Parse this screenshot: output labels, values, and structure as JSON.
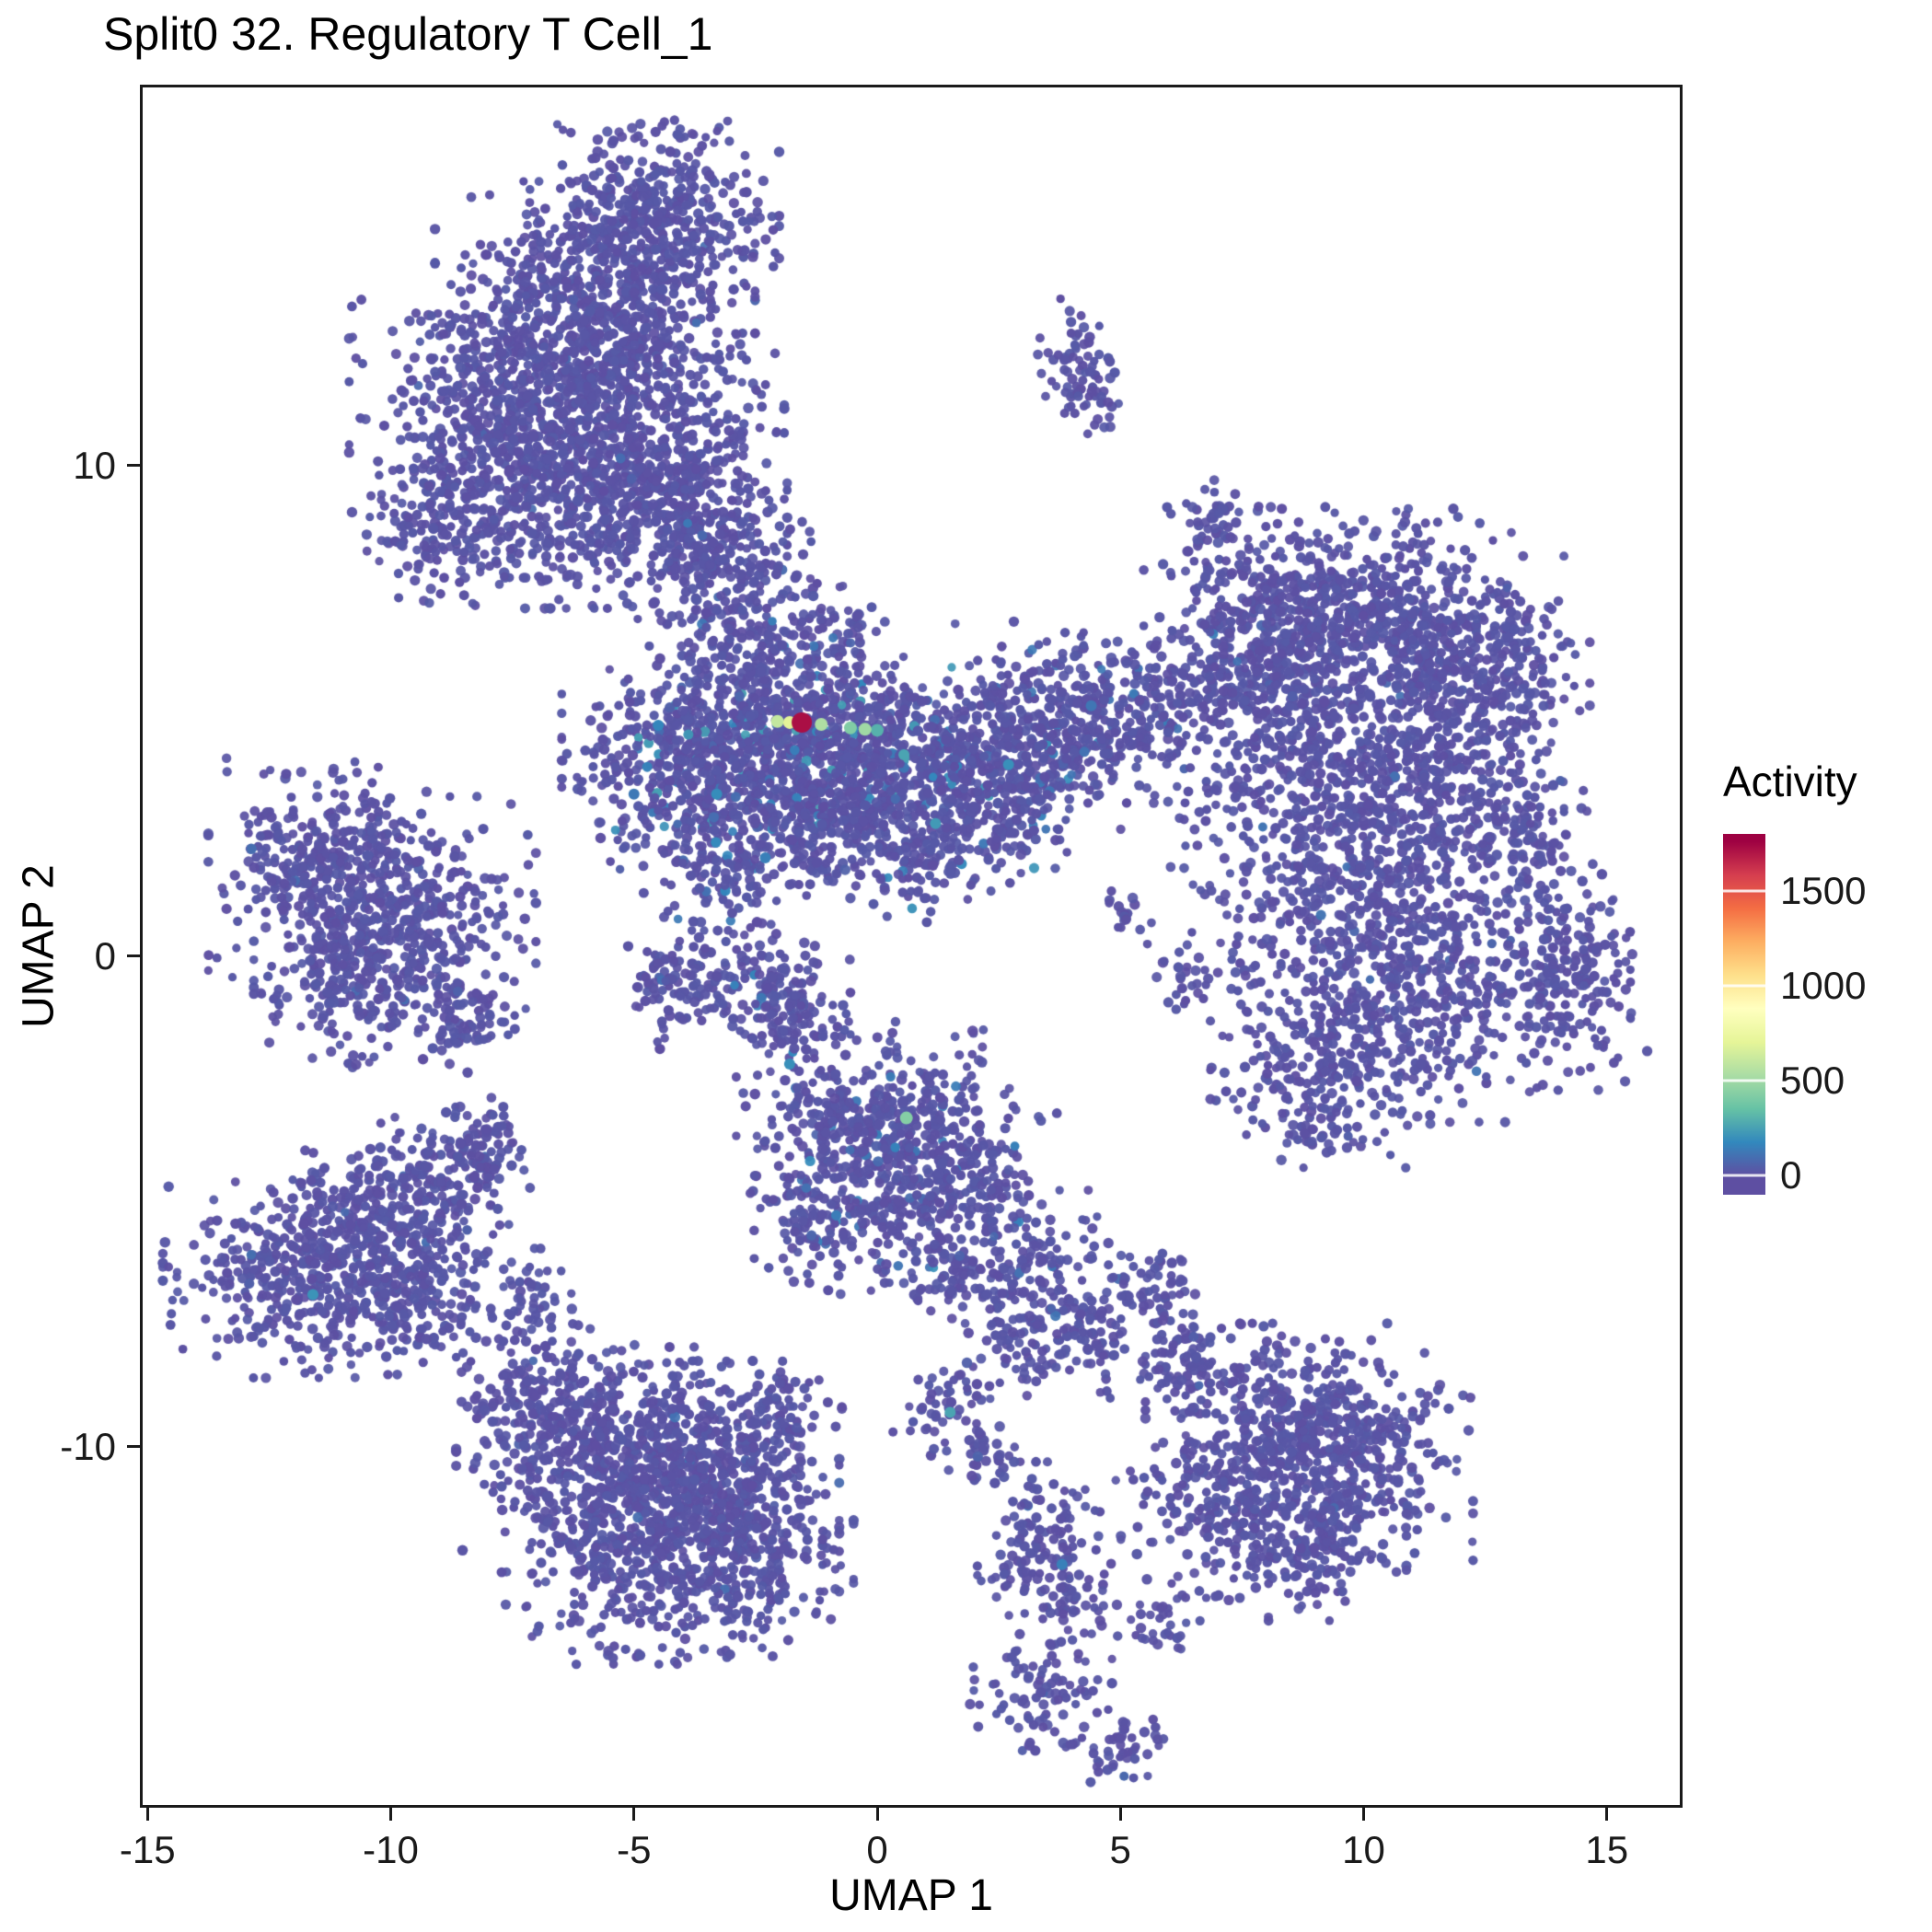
{
  "chart_data": {
    "type": "scatter",
    "title": "Split0 32. Regulatory T Cell_1",
    "xlabel": "UMAP 1",
    "ylabel": "UMAP 2",
    "xlim": [
      -15.1,
      16.5
    ],
    "ylim": [
      -17.3,
      17.7
    ],
    "x_ticks": [
      -15,
      -10,
      -5,
      0,
      5,
      10,
      15
    ],
    "y_ticks": [
      -10,
      0,
      10
    ],
    "grid": false,
    "point_radius": 5.0,
    "seed": 42,
    "panel_border_color": "#1a1a1a",
    "background": "#ffffff",
    "legend": {
      "title": "Activity",
      "position": "right",
      "ticks": [
        0,
        500,
        1000,
        1500
      ],
      "color_max": 1760,
      "bar_range": [
        -100,
        1800
      ],
      "colors": [
        "#5E4FA2",
        "#3288BD",
        "#66C2A5",
        "#ABDDA4",
        "#E6F598",
        "#FFFFBF",
        "#FEE08B",
        "#FDAE61",
        "#F46D43",
        "#D53E4F",
        "#9E0142"
      ]
    },
    "clusters_format": [
      "x",
      "y",
      "sx",
      "sy",
      "n",
      "p_mid_value",
      "mid_value_max"
    ],
    "clusters": [
      [
        -4.6,
        15.0,
        1.1,
        0.9,
        400,
        0.01,
        100
      ],
      [
        -5.8,
        13.2,
        1.4,
        1.1,
        550,
        0.01,
        100
      ],
      [
        -7.8,
        11.0,
        1.3,
        1.4,
        550,
        0.01,
        100
      ],
      [
        -5.2,
        11.0,
        1.4,
        1.1,
        450,
        0.01,
        100
      ],
      [
        -6.5,
        9.2,
        1.2,
        0.9,
        300,
        0.01,
        100
      ],
      [
        -4.2,
        9.3,
        1.0,
        0.9,
        300,
        0.02,
        140
      ],
      [
        -3.2,
        7.8,
        0.8,
        0.8,
        200,
        0.02,
        140
      ],
      [
        -9.2,
        8.7,
        0.6,
        0.8,
        120,
        0.01,
        100
      ],
      [
        -2.6,
        6.4,
        0.6,
        0.6,
        100,
        0.03,
        160
      ],
      [
        -0.9,
        6.6,
        0.45,
        0.5,
        70,
        0.03,
        160
      ],
      [
        4.0,
        12.1,
        0.4,
        0.55,
        50,
        0.01,
        100
      ],
      [
        4.5,
        11.3,
        0.3,
        0.35,
        30,
        0.01,
        100
      ],
      [
        -3.9,
        4.2,
        1.1,
        0.9,
        420,
        0.09,
        260
      ],
      [
        -2.0,
        4.5,
        0.9,
        0.8,
        380,
        0.09,
        260
      ],
      [
        -0.3,
        4.1,
        1.0,
        0.85,
        380,
        0.09,
        260
      ],
      [
        1.6,
        3.9,
        1.0,
        0.85,
        330,
        0.08,
        240
      ],
      [
        3.4,
        4.7,
        0.9,
        0.9,
        280,
        0.06,
        220
      ],
      [
        5.2,
        5.0,
        0.8,
        0.8,
        200,
        0.04,
        180
      ],
      [
        -2.9,
        2.4,
        1.1,
        0.8,
        280,
        0.07,
        240
      ],
      [
        -0.9,
        2.6,
        0.7,
        0.6,
        150,
        0.07,
        240
      ],
      [
        0.8,
        2.1,
        0.7,
        0.6,
        130,
        0.06,
        220
      ],
      [
        2.6,
        2.9,
        0.6,
        0.6,
        110,
        0.06,
        220
      ],
      [
        8.3,
        6.8,
        1.2,
        1.0,
        400,
        0.015,
        120
      ],
      [
        10.4,
        7.0,
        1.2,
        0.9,
        380,
        0.015,
        120
      ],
      [
        12.3,
        5.8,
        1.0,
        1.0,
        300,
        0.015,
        120
      ],
      [
        8.8,
        4.4,
        1.2,
        1.1,
        380,
        0.02,
        140
      ],
      [
        11.3,
        3.4,
        1.2,
        1.2,
        360,
        0.015,
        120
      ],
      [
        9.6,
        1.4,
        1.4,
        1.3,
        420,
        0.02,
        140
      ],
      [
        11.2,
        -0.8,
        1.1,
        1.1,
        320,
        0.015,
        120
      ],
      [
        9.2,
        -2.2,
        1.0,
        0.9,
        260,
        0.015,
        120
      ],
      [
        13.3,
        2.2,
        0.6,
        0.8,
        120,
        0.01,
        100
      ],
      [
        14.3,
        -0.5,
        0.75,
        0.95,
        200,
        0.01,
        100
      ],
      [
        6.8,
        5.6,
        0.6,
        0.6,
        90,
        0.03,
        160
      ],
      [
        6.9,
        8.9,
        0.4,
        0.45,
        50,
        0.01,
        100
      ],
      [
        -11.4,
        1.8,
        1.0,
        0.95,
        320,
        0.01,
        100
      ],
      [
        -9.6,
        0.9,
        1.1,
        1.0,
        330,
        0.01,
        100
      ],
      [
        -10.7,
        -0.4,
        0.9,
        0.8,
        220,
        0.015,
        120
      ],
      [
        -8.4,
        -1.2,
        0.5,
        0.5,
        80,
        0.01,
        100
      ],
      [
        -2.9,
        -0.6,
        1.0,
        0.55,
        170,
        0.04,
        180
      ],
      [
        -1.8,
        -1.3,
        0.5,
        0.45,
        80,
        0.04,
        180
      ],
      [
        -4.3,
        -0.4,
        0.35,
        0.3,
        40,
        0.02,
        120
      ],
      [
        -0.9,
        -3.4,
        0.85,
        0.75,
        180,
        0.05,
        200
      ],
      [
        0.8,
        -3.1,
        0.85,
        0.75,
        180,
        0.05,
        200
      ],
      [
        0.1,
        -4.9,
        1.0,
        0.85,
        220,
        0.05,
        200
      ],
      [
        1.9,
        -4.4,
        0.8,
        0.7,
        140,
        0.04,
        180
      ],
      [
        -1.4,
        -5.6,
        0.55,
        0.5,
        70,
        0.04,
        180
      ],
      [
        1.4,
        -6.3,
        0.65,
        0.6,
        90,
        0.04,
        180
      ],
      [
        3.3,
        -6.3,
        0.75,
        0.65,
        130,
        0.02,
        140
      ],
      [
        4.3,
        -7.6,
        0.65,
        0.6,
        100,
        0.02,
        140
      ],
      [
        2.9,
        -7.9,
        0.45,
        0.45,
        50,
        0.02,
        140
      ],
      [
        -12.1,
        -6.6,
        1.1,
        0.85,
        320,
        0.015,
        130
      ],
      [
        -10.3,
        -5.6,
        1.0,
        0.85,
        280,
        0.015,
        130
      ],
      [
        -8.9,
        -4.6,
        0.75,
        0.65,
        160,
        0.01,
        100
      ],
      [
        -9.5,
        -7.0,
        0.85,
        0.65,
        170,
        0.01,
        100
      ],
      [
        -7.9,
        -3.7,
        0.4,
        0.4,
        50,
        0.01,
        100
      ],
      [
        -7.0,
        -6.9,
        0.4,
        0.4,
        45,
        0.01,
        100
      ],
      [
        -5.6,
        -10.2,
        1.3,
        1.0,
        480,
        0.012,
        110
      ],
      [
        -3.6,
        -10.6,
        1.2,
        1.0,
        430,
        0.012,
        110
      ],
      [
        -4.9,
        -12.2,
        1.2,
        0.95,
        380,
        0.01,
        100
      ],
      [
        -2.6,
        -12.3,
        0.9,
        0.85,
        230,
        0.01,
        100
      ],
      [
        -6.9,
        -9.0,
        0.7,
        0.7,
        140,
        0.01,
        100
      ],
      [
        -1.9,
        -9.3,
        0.5,
        0.5,
        70,
        0.02,
        140
      ],
      [
        8.1,
        -9.6,
        1.1,
        0.9,
        330,
        0.012,
        110
      ],
      [
        9.9,
        -10.2,
        1.0,
        0.9,
        280,
        0.012,
        110
      ],
      [
        7.1,
        -11.2,
        0.85,
        0.8,
        190,
        0.01,
        100
      ],
      [
        9.0,
        -11.9,
        0.8,
        0.7,
        170,
        0.01,
        100
      ],
      [
        6.4,
        -8.2,
        0.5,
        0.55,
        80,
        0.01,
        100
      ],
      [
        5.8,
        -6.7,
        0.4,
        0.45,
        50,
        0.01,
        100
      ],
      [
        1.5,
        -9.3,
        0.5,
        0.5,
        60,
        0.03,
        160
      ],
      [
        2.3,
        -10.2,
        0.3,
        0.3,
        25,
        0.02,
        120
      ],
      [
        3.6,
        -11.6,
        0.6,
        0.55,
        80,
        0.03,
        160
      ],
      [
        3.0,
        -12.6,
        0.4,
        0.4,
        40,
        0.02,
        120
      ],
      [
        4.1,
        -13.1,
        0.5,
        0.45,
        50,
        0.02,
        120
      ],
      [
        3.3,
        -14.9,
        0.65,
        0.55,
        85,
        0.02,
        120
      ],
      [
        5.0,
        -16.0,
        0.5,
        0.4,
        50,
        0.02,
        120
      ],
      [
        5.9,
        -13.6,
        0.35,
        0.35,
        30,
        0.02,
        120
      ],
      [
        6.3,
        -0.4,
        0.3,
        0.35,
        25,
        0.02,
        120
      ],
      [
        5.1,
        0.9,
        0.25,
        0.3,
        18,
        0.02,
        120
      ]
    ],
    "highlights": [
      {
        "x": -2.05,
        "y": 4.78,
        "v": 600,
        "r": 7
      },
      {
        "x": -1.8,
        "y": 4.76,
        "v": 700,
        "r": 7
      },
      {
        "x": -1.55,
        "y": 4.76,
        "v": 1720,
        "r": 11
      },
      {
        "x": -1.15,
        "y": 4.72,
        "v": 540,
        "r": 7
      },
      {
        "x": -0.55,
        "y": 4.65,
        "v": 420,
        "r": 7
      },
      {
        "x": -0.25,
        "y": 4.62,
        "v": 500,
        "r": 7
      },
      {
        "x": 0.0,
        "y": 4.6,
        "v": 300,
        "r": 7
      },
      {
        "x": 0.55,
        "y": 4.1,
        "v": 260,
        "r": 6
      },
      {
        "x": 1.2,
        "y": 2.7,
        "v": 230,
        "r": 6
      },
      {
        "x": -3.3,
        "y": 3.3,
        "v": 190,
        "r": 6
      },
      {
        "x": -4.5,
        "y": 4.7,
        "v": 170,
        "r": 6
      },
      {
        "x": -5.0,
        "y": 3.3,
        "v": 130,
        "r": 6
      },
      {
        "x": -2.3,
        "y": 2.0,
        "v": 150,
        "r": 6
      },
      {
        "x": 2.7,
        "y": 3.9,
        "v": 200,
        "r": 6
      },
      {
        "x": 4.4,
        "y": 5.1,
        "v": 120,
        "r": 6
      },
      {
        "x": 0.6,
        "y": -3.3,
        "v": 430,
        "r": 7
      },
      {
        "x": -1.8,
        "y": -2.2,
        "v": 200,
        "r": 6
      },
      {
        "x": 1.5,
        "y": -9.3,
        "v": 260,
        "r": 6
      },
      {
        "x": -11.6,
        "y": -6.9,
        "v": 210,
        "r": 6
      },
      {
        "x": 3.8,
        "y": -12.4,
        "v": 150,
        "r": 6
      }
    ]
  }
}
